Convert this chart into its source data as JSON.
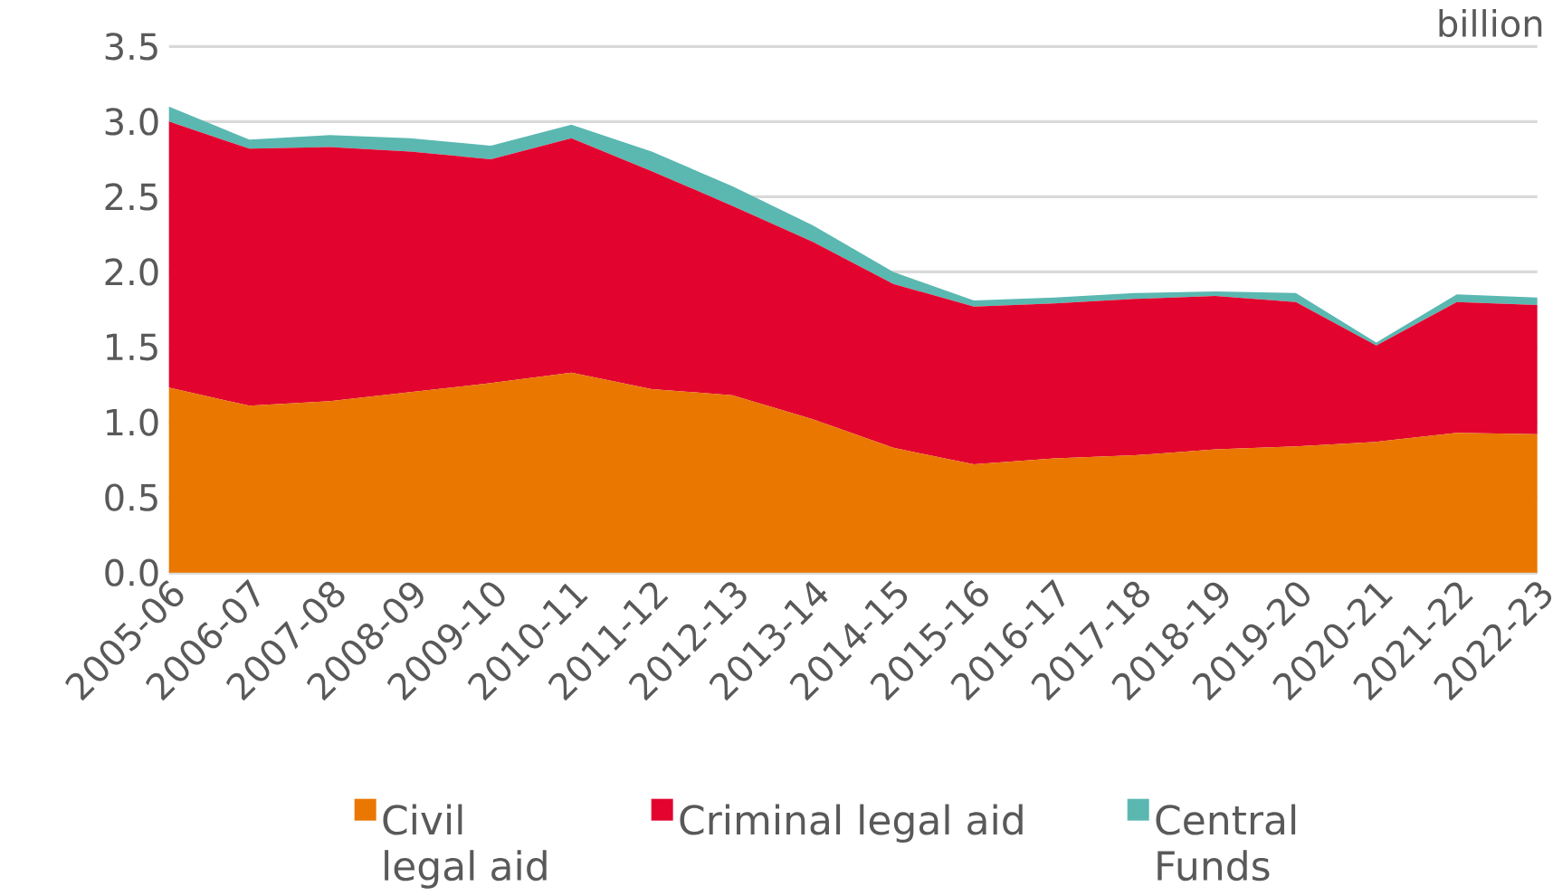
{
  "chart_data": {
    "type": "area",
    "stacked": true,
    "ylabel": "billion",
    "categories": [
      "2005-06",
      "2006-07",
      "2007-08",
      "2008-09",
      "2009-10",
      "2010-11",
      "2011-12",
      "2012-13",
      "2013-14",
      "2014-15",
      "2015-16",
      "2016-17",
      "2017-18",
      "2018-19",
      "2019-20",
      "2020-21",
      "2021-22",
      "2022-23"
    ],
    "series": [
      {
        "name": "Civil legal aid",
        "color": "#e97700",
        "values": [
          1.23,
          1.11,
          1.14,
          1.2,
          1.26,
          1.33,
          1.22,
          1.18,
          1.02,
          0.83,
          0.72,
          0.76,
          0.78,
          0.82,
          0.84,
          0.87,
          0.93,
          0.92
        ]
      },
      {
        "name": "Criminal legal aid",
        "color": "#e2042f",
        "values": [
          1.77,
          1.71,
          1.69,
          1.6,
          1.49,
          1.56,
          1.45,
          1.26,
          1.18,
          1.09,
          1.05,
          1.03,
          1.04,
          1.02,
          0.96,
          0.64,
          0.87,
          0.86
        ]
      },
      {
        "name": "Central Funds",
        "color": "#5ab8b1",
        "values": [
          0.1,
          0.06,
          0.08,
          0.09,
          0.09,
          0.09,
          0.13,
          0.13,
          0.11,
          0.08,
          0.04,
          0.04,
          0.04,
          0.03,
          0.06,
          0.02,
          0.05,
          0.05
        ]
      }
    ],
    "ylim": [
      0,
      3.5
    ],
    "yticks": [
      {
        "value": 0,
        "label": "0.0"
      },
      0.5,
      {
        "value": 1,
        "label": "1.0"
      },
      1.5,
      {
        "value": 2,
        "label": "2.0"
      },
      2.5,
      {
        "value": 3,
        "label": "3.0"
      },
      3.5
    ],
    "grid": "y",
    "legend": "bottom"
  }
}
